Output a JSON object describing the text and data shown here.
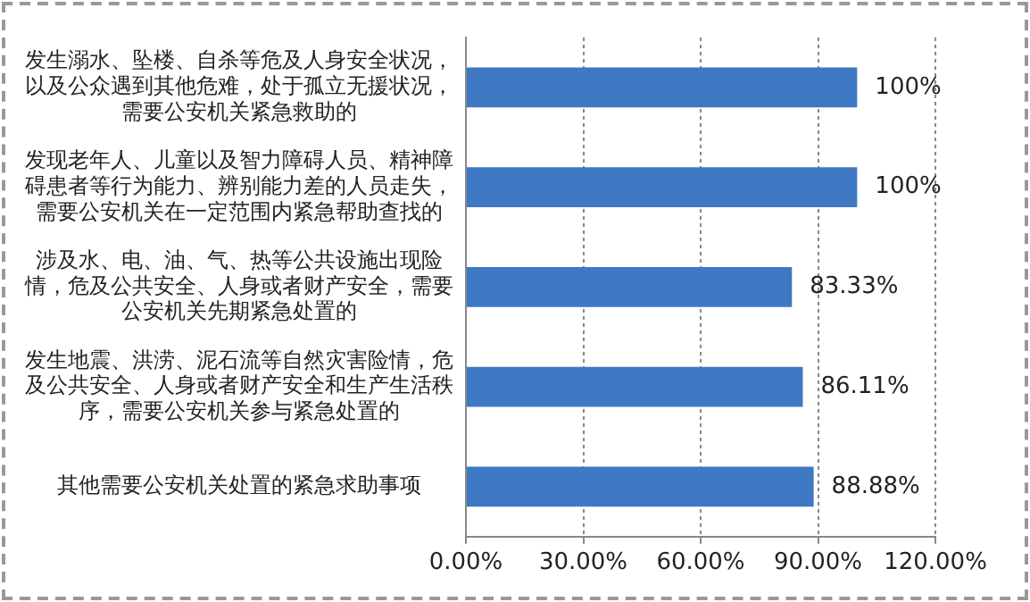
{
  "chart_data": {
    "type": "bar",
    "orientation": "horizontal",
    "categories": [
      "发生溺水、坠楼、自杀等危及人身安全状况，以及公众遇到其他危难，处于孤立无援状况，需要公安机关紧急救助的",
      "发现老年人、儿童以及智力障碍人员、精神障碍患者等行为能力、辨别能力差的人员走失，需要公安机关在一定范围内紧急帮助查找的",
      "涉及水、电、油、气、热等公共设施出现险情，危及公共安全、人身或者财产安全，需要公安机关先期紧急处置的",
      "发生地震、洪涝、泥石流等自然灾害险情，危及公共安全、人身或者财产安全和生产生活秩序，需要公安机关参与紧急处置的",
      "其他需要公安机关处置的紧急求助事项"
    ],
    "values": [
      100,
      100,
      83.33,
      86.11,
      88.88
    ],
    "value_labels": [
      "100%",
      "100%",
      "83.33%",
      "86.11%",
      "88.88%"
    ],
    "color": "#3f78c3",
    "xlim": [
      0,
      120
    ],
    "xticks": [
      {
        "value": 0,
        "label": "0.00%"
      },
      {
        "value": 30,
        "label": "30.00%"
      },
      {
        "value": 60,
        "label": "60.00%"
      },
      {
        "value": 90,
        "label": "90.00%"
      },
      {
        "value": 120,
        "label": "120.00%"
      }
    ],
    "grid": "x",
    "legend": false
  }
}
